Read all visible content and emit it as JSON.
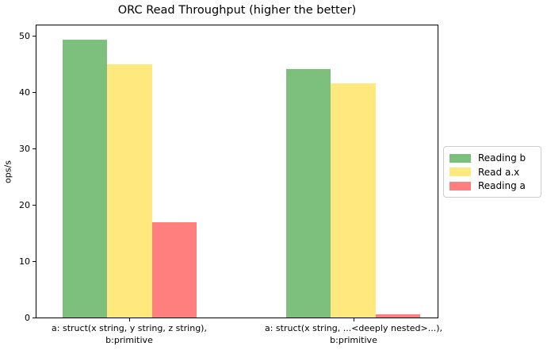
{
  "chart_data": {
    "type": "bar",
    "title": "ORC Read Throughput (higher the better)",
    "xlabel": "",
    "ylabel": "ops/s",
    "ylim": [
      0,
      52
    ],
    "yticks": [
      0,
      10,
      20,
      30,
      40,
      50
    ],
    "grid": false,
    "legend_position": "center-right-outside",
    "categories": [
      "a: struct(x string, y string, z string),\nb:primitive",
      "a: struct(x string, ...<deeply nested>...),\nb:primitive"
    ],
    "series": [
      {
        "name": "Reading b",
        "color": "#7dbf7d",
        "values": [
          49.4,
          44.3
        ]
      },
      {
        "name": "Read a.x",
        "color": "#ffe87e",
        "values": [
          45.1,
          41.7
        ]
      },
      {
        "name": "Reading a",
        "color": "#ff7f7f",
        "values": [
          17.0,
          0.6
        ]
      }
    ]
  },
  "colors": {
    "axis": "#000000",
    "legend_border": "#cccccc",
    "background": "#ffffff"
  }
}
